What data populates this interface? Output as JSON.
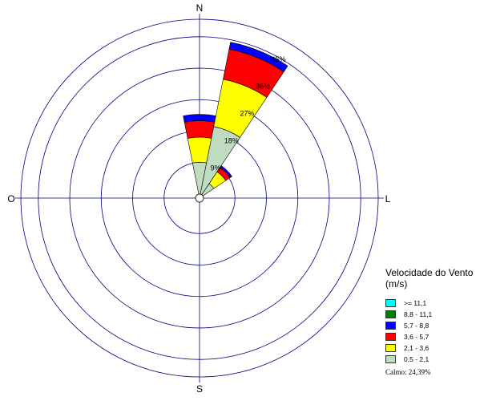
{
  "chart_data": {
    "type": "wind_rose",
    "title": "",
    "direction_labels": {
      "north": "N",
      "east": "L",
      "south": "S",
      "west": "O"
    },
    "ring_labels": [
      "9%",
      "18%",
      "27%",
      "36%",
      "45%"
    ],
    "ring_values": [
      9,
      18,
      27,
      36,
      45
    ],
    "legend": {
      "title_line1": "Velocidade do Vento",
      "title_line2": "(m/s)",
      "items": [
        {
          "label": ">= 11,1",
          "color": "#00ffff"
        },
        {
          "label": "8,8 - 11,1",
          "color": "#008000"
        },
        {
          "label": "5,7 - 8,8",
          "color": "#0000ff"
        },
        {
          "label": "3,6 - 5,7",
          "color": "#ff0000"
        },
        {
          "label": "2,1 - 3,6",
          "color": "#ffff00"
        },
        {
          "label": "0,5 - 2,1",
          "color": "#c0dcc0"
        }
      ],
      "calm_label": "Calmo: 24,39%"
    },
    "sectors": [
      {
        "direction_deg": 0,
        "cumulative": [
          {
            "bin": "0,5 - 2,1",
            "upto": 9.1
          },
          {
            "bin": "2,1 - 3,6",
            "upto": 16.3
          },
          {
            "bin": "3,6 - 5,7",
            "upto": 21.0
          },
          {
            "bin": "5,7 - 8,8",
            "upto": 22.8
          }
        ]
      },
      {
        "direction_deg": 22.5,
        "cumulative": [
          {
            "bin": "0,5 - 2,1",
            "upto": 19.7
          },
          {
            "bin": "2,1 - 3,6",
            "upto": 33.5
          },
          {
            "bin": "3,6 - 5,7",
            "upto": 42.3
          },
          {
            "bin": "5,7 - 8,8",
            "upto": 44.3
          }
        ]
      },
      {
        "direction_deg": 45,
        "cumulative": [
          {
            "bin": "0,5 - 2,1",
            "upto": 3.8
          },
          {
            "bin": "2,1 - 3,6",
            "upto": 7.9
          },
          {
            "bin": "3,6 - 5,7",
            "upto": 9.4
          },
          {
            "bin": "5,7 - 8,8",
            "upto": 10.0
          }
        ]
      }
    ],
    "colors": {
      "axis": "#000080",
      "sector_outline": "#000000"
    }
  }
}
